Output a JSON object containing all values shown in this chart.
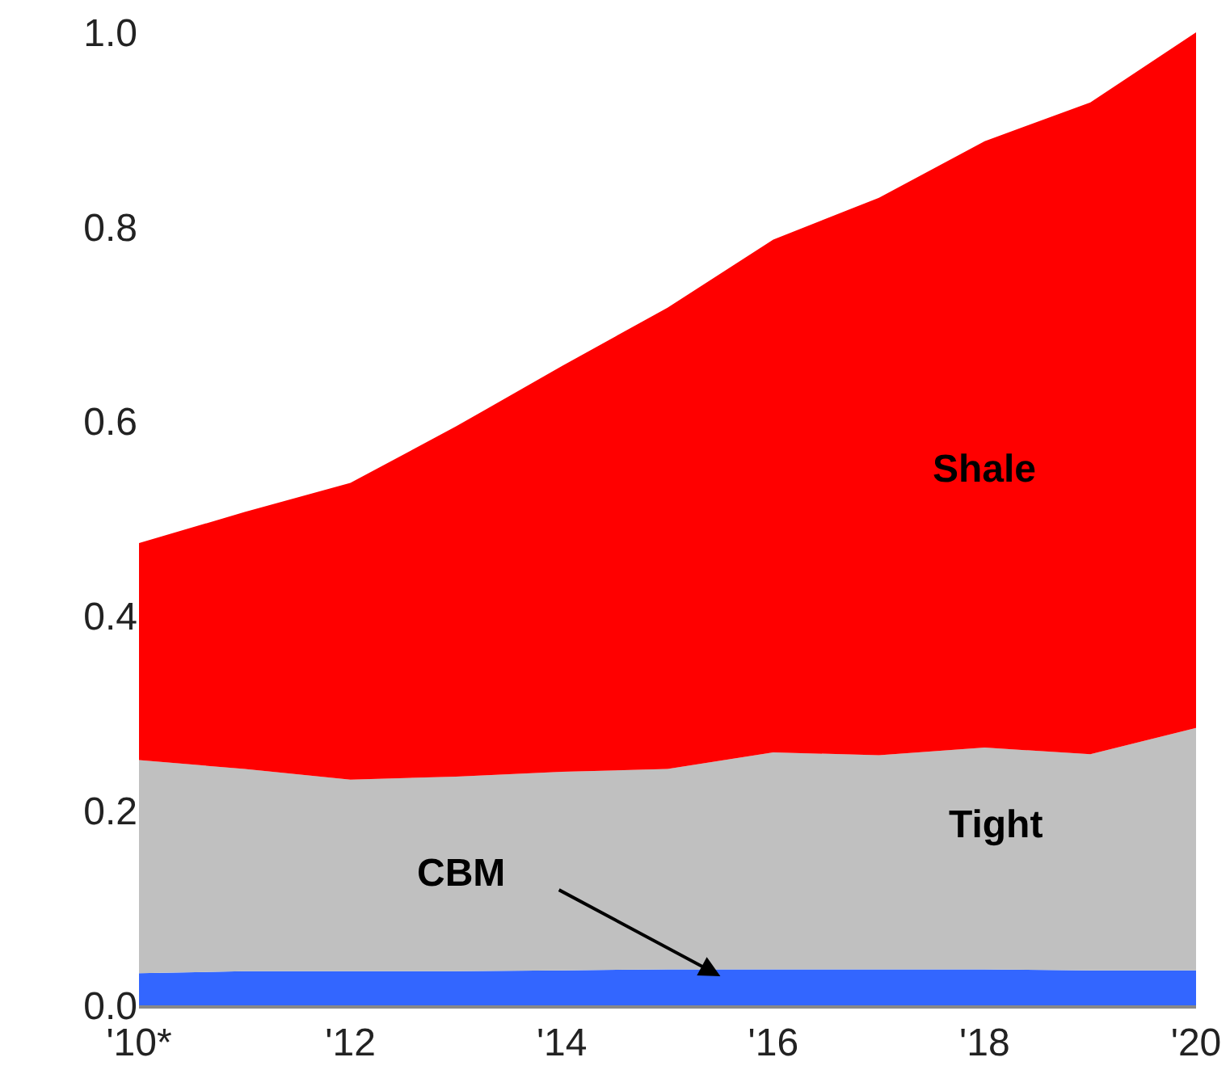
{
  "chart_data": {
    "type": "area",
    "stacked": true,
    "categories": [
      "'10*",
      null,
      "'12",
      null,
      "'14",
      null,
      "'16",
      null,
      "'18",
      null,
      "'20"
    ],
    "series": [
      {
        "name": "CBM",
        "color": "#3366ff",
        "values": [
          0.033,
          0.035,
          0.035,
          0.035,
          0.036,
          0.037,
          0.037,
          0.037,
          0.037,
          0.036,
          0.036
        ]
      },
      {
        "name": "Tight",
        "color": "#c0c0c0",
        "values": [
          0.219,
          0.208,
          0.197,
          0.2,
          0.204,
          0.206,
          0.223,
          0.22,
          0.228,
          0.222,
          0.249
        ]
      },
      {
        "name": "Shale",
        "color": "#ff0000",
        "values": [
          0.223,
          0.264,
          0.305,
          0.36,
          0.417,
          0.474,
          0.527,
          0.573,
          0.623,
          0.67,
          0.715
        ]
      }
    ],
    "ylim": [
      0,
      1
    ],
    "yticks": [
      {
        "value": 0,
        "label": "0.0"
      },
      0.2,
      0.4,
      0.6,
      0.8,
      {
        "value": 1,
        "label": "1.0"
      }
    ],
    "grid": false,
    "legend": false
  }
}
